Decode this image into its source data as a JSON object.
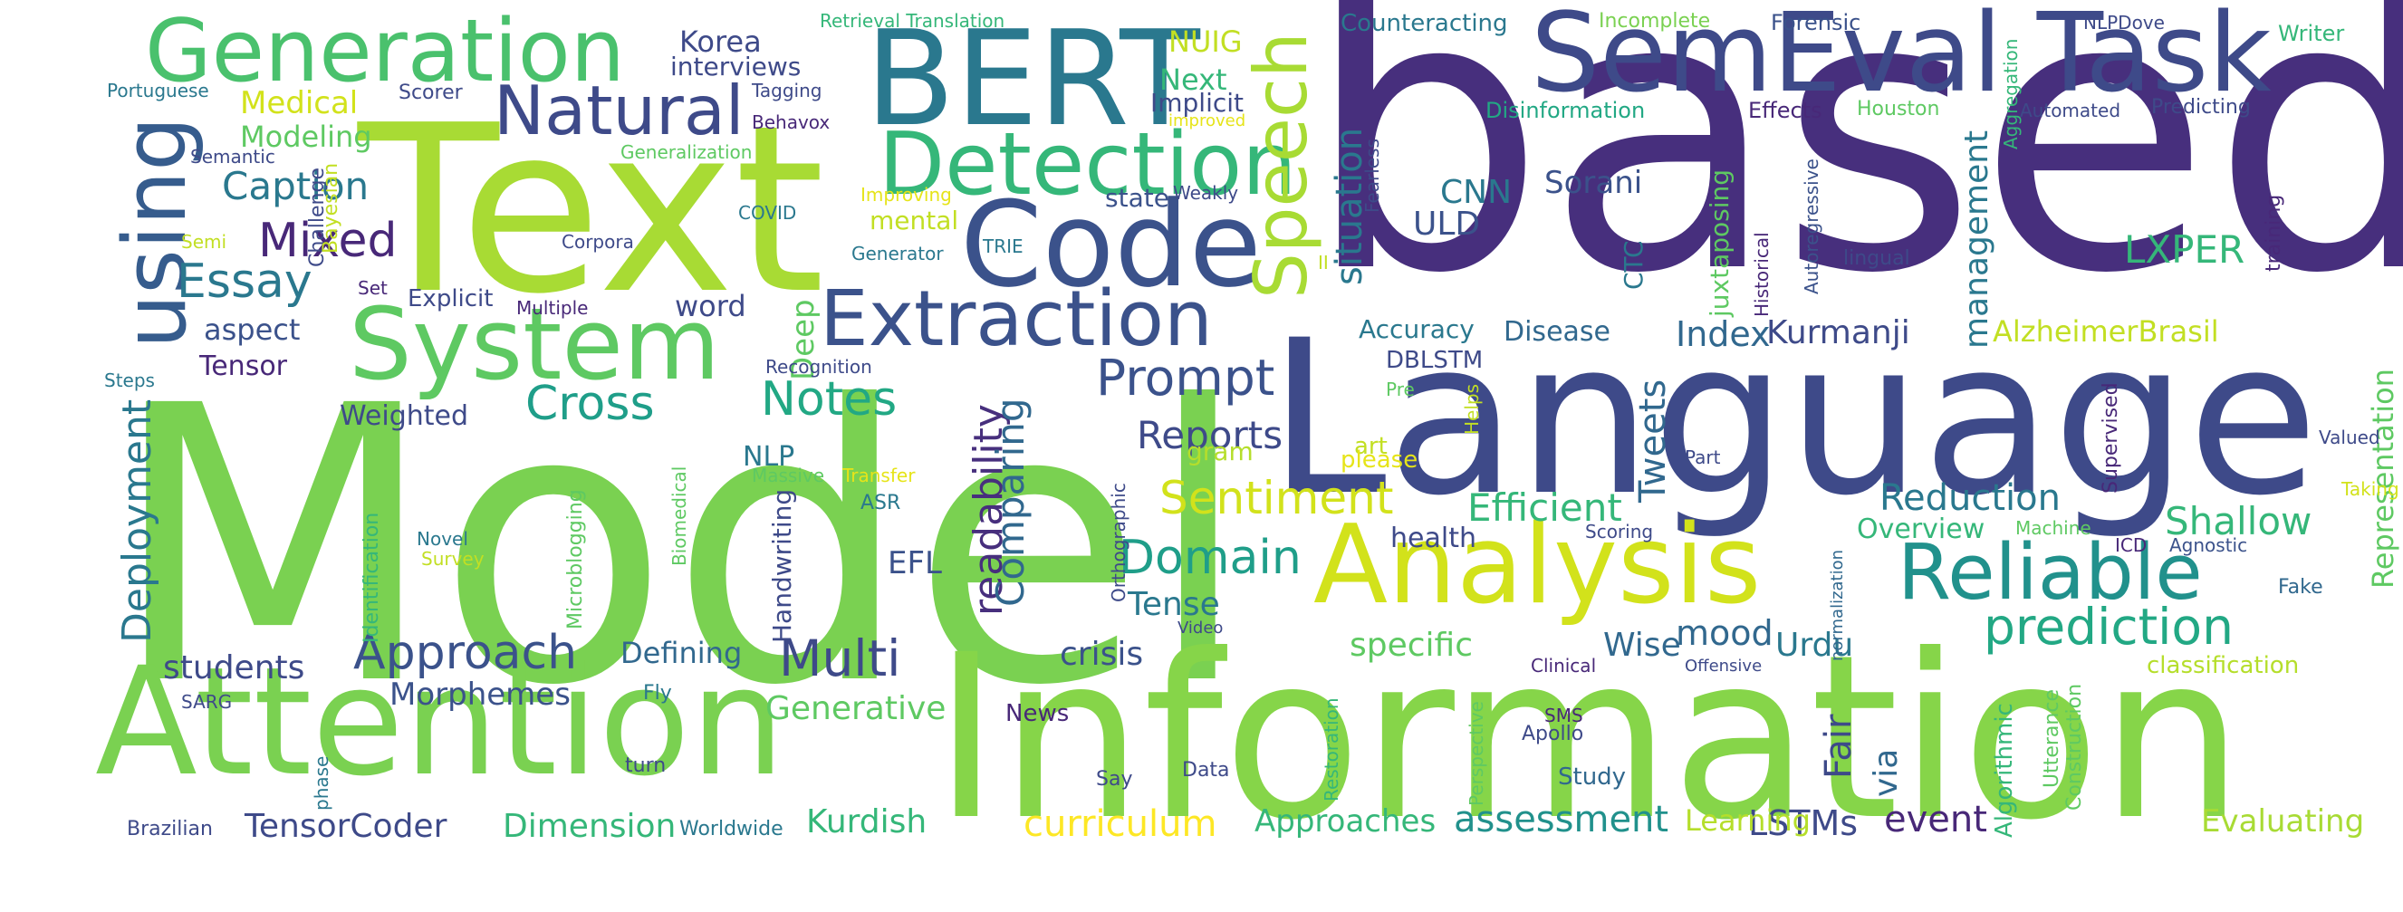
{
  "palette": {
    "lime": "#95d840",
    "green": "#73d055",
    "teal_green": "#3cbb75",
    "teal": "#29af7f",
    "cyan": "#1f968b",
    "blue_teal": "#238a8d",
    "blue": "#2d708e",
    "slate": "#39568c",
    "indigo": "#453781",
    "purple": "#481f70",
    "yellow": "#dce319",
    "yellow2": "#b8de29",
    "light_yellow": "#e8e419"
  },
  "words": [
    {
      "text": "Model",
      "color": "#7ad151",
      "rot": false
    },
    {
      "text": "based",
      "color": "#472f7d",
      "rot": false
    },
    {
      "text": "Information",
      "color": "#86d549",
      "rot": false
    },
    {
      "text": "Language",
      "color": "#3e4a89",
      "rot": false
    },
    {
      "text": "Text",
      "color": "#a8db34",
      "rot": false
    },
    {
      "text": "Attention",
      "color": "#7ad151",
      "rot": false
    },
    {
      "text": "Analysis",
      "color": "#d2e21b",
      "rot": false
    },
    {
      "text": "BERT",
      "color": "#2a788e",
      "rot": false
    },
    {
      "text": "SemEval Task",
      "color": "#3e4a89",
      "rot": false
    },
    {
      "text": "Code",
      "color": "#3b528b",
      "rot": false
    },
    {
      "text": "System",
      "color": "#5ec962",
      "rot": false
    },
    {
      "text": "Generation",
      "color": "#4ac16d",
      "rot": false
    },
    {
      "text": "Detection",
      "color": "#35b779",
      "rot": false
    },
    {
      "text": "Extraction",
      "color": "#3b528b",
      "rot": false
    },
    {
      "text": "Natural",
      "color": "#3e4a89",
      "rot": false
    },
    {
      "text": "Reliable",
      "color": "#21918c",
      "rot": false
    },
    {
      "text": "using",
      "color": "#365c8d",
      "rot": true
    },
    {
      "text": "Speech",
      "color": "#a8db34",
      "rot": true
    },
    {
      "text": "prediction",
      "color": "#22a884",
      "rot": false
    },
    {
      "text": "Prompt",
      "color": "#3b528b",
      "rot": false
    },
    {
      "text": "Sentiment",
      "color": "#d2e21b",
      "rot": false
    },
    {
      "text": "Multi",
      "color": "#3e4a89",
      "rot": false
    },
    {
      "text": "Approach",
      "color": "#3b528b",
      "rot": false
    },
    {
      "text": "Essay",
      "color": "#2a788e",
      "rot": false
    },
    {
      "text": "Mixed",
      "color": "#482878",
      "rot": false
    },
    {
      "text": "Cross",
      "color": "#1f9e89",
      "rot": false
    },
    {
      "text": "Notes",
      "color": "#22a884",
      "rot": false
    },
    {
      "text": "Domain",
      "color": "#1f9e89",
      "rot": false
    },
    {
      "text": "Reports",
      "color": "#3e4a89",
      "rot": false
    },
    {
      "text": "Caption",
      "color": "#2a788e",
      "rot": false
    },
    {
      "text": "Efficient",
      "color": "#35b779",
      "rot": false
    },
    {
      "text": "Shallow",
      "color": "#35b779",
      "rot": false
    },
    {
      "text": "Reduction",
      "color": "#2a788e",
      "rot": false
    },
    {
      "text": "Index",
      "color": "#31688e",
      "rot": false
    },
    {
      "text": "Kurmanji",
      "color": "#3e4a89",
      "rot": false
    },
    {
      "text": "LXPER",
      "color": "#35b779",
      "rot": false
    },
    {
      "text": "CNN",
      "color": "#2a788e",
      "rot": false
    },
    {
      "text": "ULD",
      "color": "#3b528b",
      "rot": false
    },
    {
      "text": "situation",
      "color": "#2a788e",
      "rot": true
    },
    {
      "text": "management",
      "color": "#2a788e",
      "rot": true
    },
    {
      "text": "readability",
      "color": "#472f7d",
      "rot": true
    },
    {
      "text": "Comparing",
      "color": "#31688e",
      "rot": true
    },
    {
      "text": "Deployment",
      "color": "#2a788e",
      "rot": true
    },
    {
      "text": "Sorani",
      "color": "#3b528b",
      "rot": false
    },
    {
      "text": "Tweets",
      "color": "#31688e",
      "rot": true
    },
    {
      "text": "curriculum",
      "color": "#fde725",
      "rot": false
    },
    {
      "text": "assessment",
      "color": "#21918c",
      "rot": false
    },
    {
      "text": "LSTMs",
      "color": "#3e4a89",
      "rot": false
    },
    {
      "text": "event",
      "color": "#482878",
      "rot": false
    },
    {
      "text": "Generative",
      "color": "#5ec962",
      "rot": false
    },
    {
      "text": "Dimension",
      "color": "#35b779",
      "rot": false
    },
    {
      "text": "TensorCoder",
      "color": "#3e4a89",
      "rot": false
    },
    {
      "text": "Kurdish",
      "color": "#35b779",
      "rot": false
    },
    {
      "text": "Approaches",
      "color": "#35b779",
      "rot": false
    },
    {
      "text": "Evaluating",
      "color": "#a8db34",
      "rot": false
    },
    {
      "text": "Learning",
      "color": "#b5de2b",
      "rot": false
    },
    {
      "text": "students",
      "color": "#3e4a89",
      "rot": false
    },
    {
      "text": "Morphemes",
      "color": "#3b528b",
      "rot": false
    },
    {
      "text": "crisis",
      "color": "#3b528b",
      "rot": false
    },
    {
      "text": "specific",
      "color": "#5ec962",
      "rot": false
    },
    {
      "text": "mood",
      "color": "#31688e",
      "rot": false
    },
    {
      "text": "Urdu",
      "color": "#2a788e",
      "rot": false
    },
    {
      "text": "Wise",
      "color": "#31688e",
      "rot": false
    },
    {
      "text": "Tense",
      "color": "#2a788e",
      "rot": false
    },
    {
      "text": "EFL",
      "color": "#3b528b",
      "rot": false
    },
    {
      "text": "Defining",
      "color": "#31688e",
      "rot": false
    },
    {
      "text": "health",
      "color": "#3e4a89",
      "rot": false
    },
    {
      "text": "Overview",
      "color": "#35b779",
      "rot": false
    },
    {
      "text": "Fair",
      "color": "#3e4a89",
      "rot": true
    },
    {
      "text": "via",
      "color": "#31688e",
      "rot": true
    },
    {
      "text": "Accuracy",
      "color": "#2a788e",
      "rot": false
    },
    {
      "text": "Disease",
      "color": "#31688e",
      "rot": false
    },
    {
      "text": "AlzheimerBrasil",
      "color": "#c2df23",
      "rot": false
    },
    {
      "text": "Representation",
      "color": "#5ec962",
      "rot": true
    },
    {
      "text": "Medical",
      "color": "#d2e21b",
      "rot": false
    },
    {
      "text": "Modeling",
      "color": "#5ec962",
      "rot": false
    },
    {
      "text": "Korea",
      "color": "#3e4a89",
      "rot": false
    },
    {
      "text": "interviews",
      "color": "#3e4a89",
      "rot": false
    },
    {
      "text": "NUIG",
      "color": "#c2df23",
      "rot": false
    },
    {
      "text": "Next",
      "color": "#35b779",
      "rot": false
    },
    {
      "text": "Implicit",
      "color": "#3e4a89",
      "rot": false
    },
    {
      "text": "aspect",
      "color": "#3b528b",
      "rot": false
    },
    {
      "text": "Tensor",
      "color": "#482878",
      "rot": false
    },
    {
      "text": "word",
      "color": "#3e4a89",
      "rot": false
    },
    {
      "text": "Deep",
      "color": "#5ec962",
      "rot": true
    },
    {
      "text": "Weighted",
      "color": "#3e4a89",
      "rot": false
    },
    {
      "text": "NLP",
      "color": "#2a788e",
      "rot": false
    },
    {
      "text": "gram",
      "color": "#b5de2b",
      "rot": false
    },
    {
      "text": "state",
      "color": "#3b528b",
      "rot": false
    },
    {
      "text": "mental",
      "color": "#c2df23",
      "rot": false
    },
    {
      "text": "Explicit",
      "color": "#3e4a89",
      "rot": false
    },
    {
      "text": "Handwriting",
      "color": "#3e4a89",
      "rot": true
    },
    {
      "text": "Counteracting",
      "color": "#2a788e",
      "rot": false
    },
    {
      "text": "Disinformation",
      "color": "#22a884",
      "rot": false
    },
    {
      "text": "Effects",
      "color": "#482878",
      "rot": false
    },
    {
      "text": "Forensic",
      "color": "#3b528b",
      "rot": false
    },
    {
      "text": "Incomplete",
      "color": "#7ad151",
      "rot": false
    },
    {
      "text": "Writer",
      "color": "#35b779",
      "rot": false
    },
    {
      "text": "NLPDove",
      "color": "#3e4a89",
      "rot": false
    },
    {
      "text": "Houston",
      "color": "#5ec962",
      "rot": false
    },
    {
      "text": "Automated",
      "color": "#3e4a89",
      "rot": false
    },
    {
      "text": "Predicting",
      "color": "#3e4a89",
      "rot": false
    },
    {
      "text": "Aggregation",
      "color": "#35b779",
      "rot": true
    },
    {
      "text": "training",
      "color": "#482878",
      "rot": true
    },
    {
      "text": "lingual",
      "color": "#3e4a89",
      "rot": false
    },
    {
      "text": "juxtaposing",
      "color": "#5ec962",
      "rot": true
    },
    {
      "text": "Historical",
      "color": "#482878",
      "rot": true
    },
    {
      "text": "Autoregressive",
      "color": "#3b528b",
      "rot": true
    },
    {
      "text": "CTC",
      "color": "#2a788e",
      "rot": true
    },
    {
      "text": "DBLSTM",
      "color": "#3e4a89",
      "rot": false
    },
    {
      "text": "Pre",
      "color": "#5ec962",
      "rot": false
    },
    {
      "text": "art",
      "color": "#c2df23",
      "rot": false
    },
    {
      "text": "please",
      "color": "#e6e419",
      "rot": false
    },
    {
      "text": "Helps",
      "color": "#c2df23",
      "rot": true
    },
    {
      "text": "Supervised",
      "color": "#482878",
      "rot": true
    },
    {
      "text": "Valued",
      "color": "#3e4a89",
      "rot": false
    },
    {
      "text": "Taking",
      "color": "#d2e21b",
      "rot": false
    },
    {
      "text": "Part",
      "color": "#3e4a89",
      "rot": false
    },
    {
      "text": "Agnostic",
      "color": "#3b528b",
      "rot": false
    },
    {
      "text": "ICD",
      "color": "#482878",
      "rot": false
    },
    {
      "text": "Machine",
      "color": "#5ec962",
      "rot": false
    },
    {
      "text": "Fake",
      "color": "#31688e",
      "rot": false
    },
    {
      "text": "classification",
      "color": "#b5de2b",
      "rot": false
    },
    {
      "text": "Utterance",
      "color": "#5ec962",
      "rot": true
    },
    {
      "text": "Construction",
      "color": "#5ec962",
      "rot": true
    },
    {
      "text": "Algorithmic",
      "color": "#35b779",
      "rot": true
    },
    {
      "text": "normalization",
      "color": "#31688e",
      "rot": true
    },
    {
      "text": "Scoring",
      "color": "#3e4a89",
      "rot": false
    },
    {
      "text": "Orthographic",
      "color": "#3e4a89",
      "rot": true
    },
    {
      "text": "Video",
      "color": "#3e4a89",
      "rot": false
    },
    {
      "text": "Clinical",
      "color": "#482878",
      "rot": false
    },
    {
      "text": "Offensive",
      "color": "#3e4a89",
      "rot": false
    },
    {
      "text": "SMS",
      "color": "#482878",
      "rot": false
    },
    {
      "text": "Apollo",
      "color": "#3e4a89",
      "rot": false
    },
    {
      "text": "Perspective",
      "color": "#5ec962",
      "rot": true
    },
    {
      "text": "Restoration",
      "color": "#35b779",
      "rot": true
    },
    {
      "text": "Study",
      "color": "#31688e",
      "rot": false
    },
    {
      "text": "Data",
      "color": "#3e4a89",
      "rot": false
    },
    {
      "text": "Say",
      "color": "#3e4a89",
      "rot": false
    },
    {
      "text": "News",
      "color": "#482878",
      "rot": false
    },
    {
      "text": "turn",
      "color": "#3e4a89",
      "rot": false
    },
    {
      "text": "Fly",
      "color": "#2a788e",
      "rot": false
    },
    {
      "text": "Worldwide",
      "color": "#2a788e",
      "rot": false
    },
    {
      "text": "Brazilian",
      "color": "#3e4a89",
      "rot": false
    },
    {
      "text": "phase",
      "color": "#2a788e",
      "rot": true
    },
    {
      "text": "SARG",
      "color": "#3e4a89",
      "rot": false
    },
    {
      "text": "Identification",
      "color": "#35b779",
      "rot": true
    },
    {
      "text": "Novel",
      "color": "#2a788e",
      "rot": false
    },
    {
      "text": "Survey",
      "color": "#c2df23",
      "rot": false
    },
    {
      "text": "Microblogging",
      "color": "#5ec962",
      "rot": true
    },
    {
      "text": "Biomedical",
      "color": "#5ec962",
      "rot": true
    },
    {
      "text": "ASR",
      "color": "#2a788e",
      "rot": false
    },
    {
      "text": "Massive",
      "color": "#5ec962",
      "rot": false
    },
    {
      "text": "Transfer",
      "color": "#e6e419",
      "rot": false
    },
    {
      "text": "Recognition",
      "color": "#3e4a89",
      "rot": false
    },
    {
      "text": "Multiple",
      "color": "#482878",
      "rot": false
    },
    {
      "text": "Set",
      "color": "#482878",
      "rot": false
    },
    {
      "text": "Challenge",
      "color": "#3e4a89",
      "rot": true
    },
    {
      "text": "Bayesian",
      "color": "#c2df23",
      "rot": true
    },
    {
      "text": "Corpora",
      "color": "#3e4a89",
      "rot": false
    },
    {
      "text": "Semi",
      "color": "#c2df23",
      "rot": false
    },
    {
      "text": "Steps",
      "color": "#2a788e",
      "rot": false
    },
    {
      "text": "COVID",
      "color": "#2a788e",
      "rot": false
    },
    {
      "text": "Generator",
      "color": "#2a788e",
      "rot": false
    },
    {
      "text": "TRIE",
      "color": "#2a788e",
      "rot": false
    },
    {
      "text": "Improving",
      "color": "#e6e419",
      "rot": false
    },
    {
      "text": "Weakly",
      "color": "#3e4a89",
      "rot": false
    },
    {
      "text": "improved",
      "color": "#e6e419",
      "rot": false
    },
    {
      "text": "Generalization",
      "color": "#5ec962",
      "rot": false
    },
    {
      "text": "Semantic",
      "color": "#3e4a89",
      "rot": false
    },
    {
      "text": "Portuguese",
      "color": "#2a788e",
      "rot": false
    },
    {
      "text": "Scorer",
      "color": "#3e4a89",
      "rot": false
    },
    {
      "text": "Behavox",
      "color": "#482878",
      "rot": false
    },
    {
      "text": "Tagging",
      "color": "#3e4a89",
      "rot": false
    },
    {
      "text": "Retrieval Translation",
      "color": "#35b779",
      "rot": false
    },
    {
      "text": "Fearless",
      "color": "#3e4a89",
      "rot": true
    },
    {
      "text": "II",
      "color": "#c2df23",
      "rot": false
    }
  ]
}
